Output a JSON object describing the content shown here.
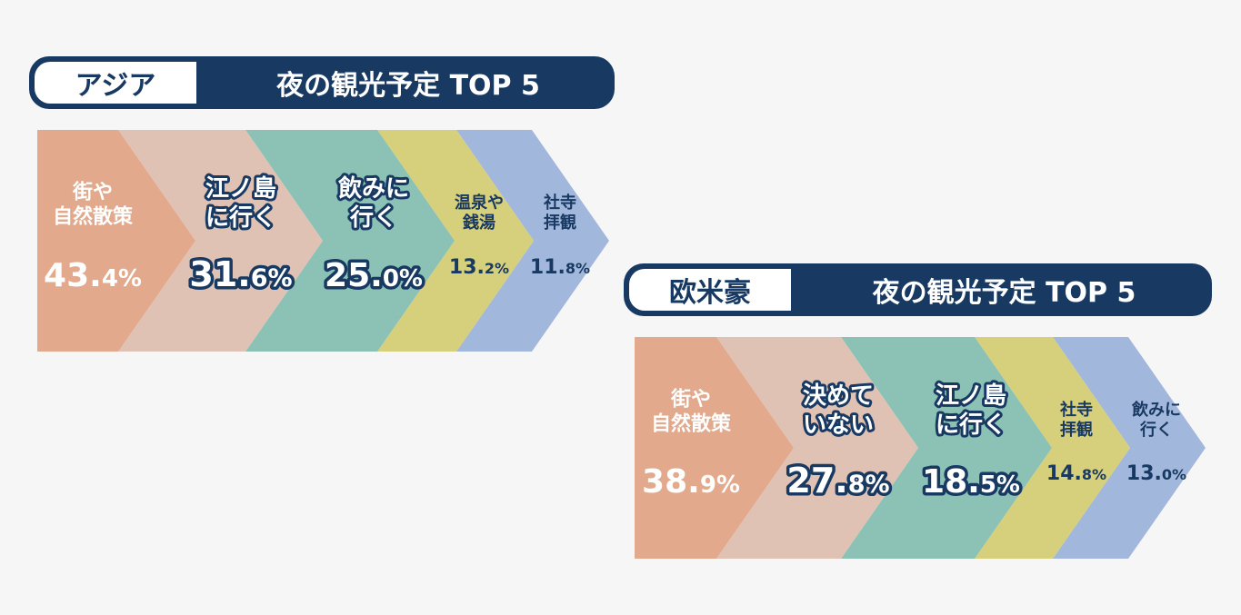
{
  "colors": {
    "navy": "#183962",
    "bands": [
      "#e2a98c",
      "#dfc2b4",
      "#8bc2b5",
      "#d6cf7c",
      "#a2b7dc"
    ]
  },
  "chart_data": [
    {
      "type": "bar",
      "region": "アジア",
      "title": "夜の観光予定 TOP 5",
      "series": [
        {
          "values": [
            43.4,
            31.6,
            25.0,
            13.2,
            11.8
          ]
        }
      ],
      "items": [
        {
          "label_lines": [
            "街や",
            "自然散策"
          ],
          "value": 43.4,
          "int": "43.",
          "dec": "4%"
        },
        {
          "label_lines": [
            "江ノ島",
            "に行く"
          ],
          "value": 31.6,
          "int": "31.",
          "dec": "6%"
        },
        {
          "label_lines": [
            "飲みに",
            "行く"
          ],
          "value": 25.0,
          "int": "25.",
          "dec": "0%"
        },
        {
          "label_lines": [
            "温泉や",
            "銭湯"
          ],
          "value": 13.2,
          "int": "13.",
          "dec": "2%"
        },
        {
          "label_lines": [
            "社寺",
            "拝観"
          ],
          "value": 11.8,
          "int": "11.",
          "dec": "8%"
        }
      ]
    },
    {
      "type": "bar",
      "region": "欧米豪",
      "title": "夜の観光予定 TOP 5",
      "series": [
        {
          "values": [
            38.9,
            27.8,
            18.5,
            14.8,
            13.0
          ]
        }
      ],
      "items": [
        {
          "label_lines": [
            "街や",
            "自然散策"
          ],
          "value": 38.9,
          "int": "38.",
          "dec": "9%"
        },
        {
          "label_lines": [
            "決めて",
            "いない"
          ],
          "value": 27.8,
          "int": "27.",
          "dec": "8%"
        },
        {
          "label_lines": [
            "江ノ島",
            "に行く"
          ],
          "value": 18.5,
          "int": "18.",
          "dec": "5%"
        },
        {
          "label_lines": [
            "社寺",
            "拝観"
          ],
          "value": 14.8,
          "int": "14.",
          "dec": "8%"
        },
        {
          "label_lines": [
            "飲みに",
            "行く"
          ],
          "value": 13.0,
          "int": "13.",
          "dec": "0%"
        }
      ]
    }
  ]
}
